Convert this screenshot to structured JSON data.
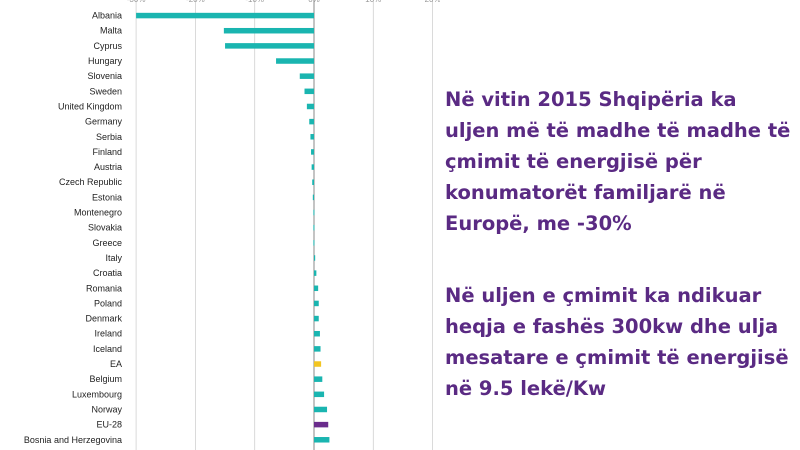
{
  "chart_data": {
    "type": "bar",
    "orientation": "horizontal",
    "categories": [
      "Albania",
      "Malta",
      "Cyprus",
      "Hungary",
      "Slovenia",
      "Sweden",
      "United Kingdom",
      "Germany",
      "Serbia",
      "Finland",
      "Austria",
      "Czech Republic",
      "Estonia",
      "Montenegro",
      "Slovakia",
      "Greece",
      "Italy",
      "Croatia",
      "Romania",
      "Poland",
      "Denmark",
      "Ireland",
      "Iceland",
      "EA",
      "Belgium",
      "Luxembourg",
      "Norway",
      "EU-28",
      "Bosnia and Herzegovina"
    ],
    "values": [
      -30,
      -15.2,
      -15,
      -6.4,
      -2.4,
      -1.6,
      -1.2,
      -0.8,
      -0.6,
      -0.5,
      -0.4,
      -0.3,
      -0.2,
      -0.1,
      -0.1,
      -0.1,
      0.2,
      0.4,
      0.7,
      0.8,
      0.8,
      1.0,
      1.1,
      1.2,
      1.4,
      1.7,
      2.2,
      2.4,
      2.6
    ],
    "xlim": [
      -31,
      21
    ],
    "xticks": [
      -30,
      -20,
      -10,
      0,
      10,
      20
    ],
    "xtick_labels": [
      "-30%",
      "-20%",
      "-10%",
      "0%",
      "10%",
      "20%"
    ],
    "grid": true,
    "colors": {
      "default": "#1ab5b0",
      "EA": "#f2c522",
      "EU-28": "#6a2c8c",
      "grid": "#d0d0d0",
      "axis": "#888888"
    }
  },
  "text": {
    "paragraph_1": "Në vitin 2015 Shqipëria ka uljen më të madhe të madhe të çmimit të energjisë për konumatorët familjarë në Europë, me -30%",
    "paragraph_2": "Në uljen e çmimit ka ndikuar heqja e fashës 300kw dhe ulja mesatare e çmimit të energjisë në 9.5 lekë/Kw"
  }
}
